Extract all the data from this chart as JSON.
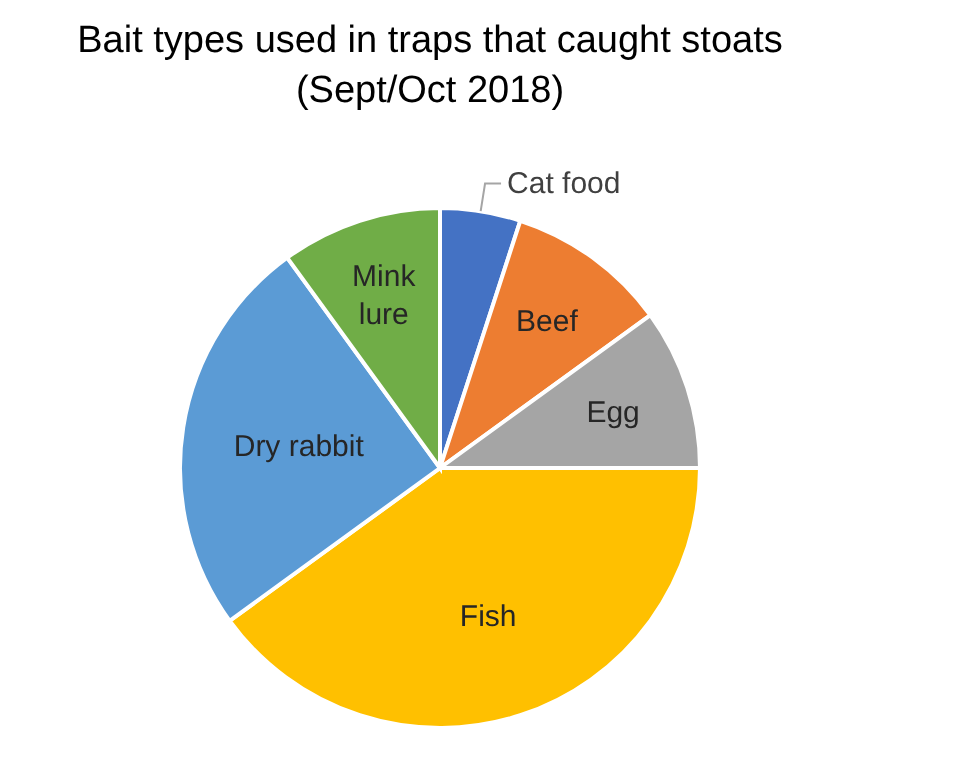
{
  "chart_data": {
    "type": "pie",
    "title": "Bait types used in traps that caught stoats (Sept/Oct 2018)",
    "categories": [
      "Cat food",
      "Beef",
      "Egg",
      "Fish",
      "Dry rabbit",
      "Mink lure"
    ],
    "values": [
      5,
      10,
      10,
      40,
      25,
      10
    ],
    "colors": [
      "#4472c4",
      "#ed7d31",
      "#a5a5a5",
      "#ffc000",
      "#5b9bd5",
      "#70ad47"
    ],
    "legend": false
  }
}
